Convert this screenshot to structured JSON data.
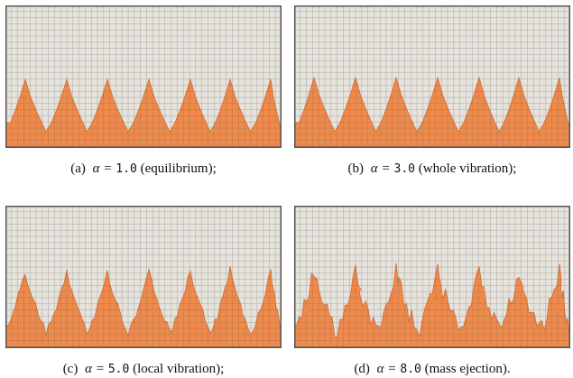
{
  "figure": {
    "colors": {
      "background": "#e6e2dc",
      "grid": "#8e8a86",
      "fluid": "#f08a4b",
      "fluid_edge": "#d46a2a",
      "frame": "#555555"
    },
    "subfigures": [
      {
        "id": "a",
        "tag": "(a)",
        "alpha_symbol": "α =",
        "alpha_value": "1.0",
        "desc": "(equilibrium);",
        "style": "equilibrium"
      },
      {
        "id": "b",
        "tag": "(b)",
        "alpha_symbol": "α =",
        "alpha_value": "3.0",
        "desc": "(whole vibration);",
        "style": "whole"
      },
      {
        "id": "c",
        "tag": "(c)",
        "alpha_symbol": "α =",
        "alpha_value": "5.0",
        "desc": "(local vibration);",
        "style": "local"
      },
      {
        "id": "d",
        "tag": "(d)",
        "alpha_symbol": "α =",
        "alpha_value": "8.0",
        "desc": "(mass ejection).",
        "style": "ejection"
      }
    ]
  }
}
